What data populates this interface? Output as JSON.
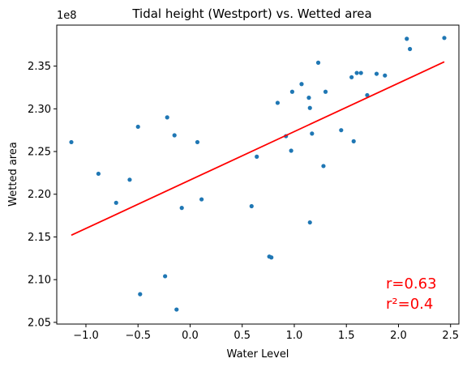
{
  "chart_data": {
    "type": "scatter",
    "title": "Tidal height (Westport) vs. Wetted area",
    "xlabel": "Water Level",
    "ylabel": "Wetted area",
    "y_offset_label": "1e8",
    "y_scale": 100000000,
    "xlim": [
      -1.28,
      2.58
    ],
    "ylim": [
      2.048,
      2.398
    ],
    "x_ticks": [
      -1.0,
      -0.5,
      0.0,
      0.5,
      1.0,
      1.5,
      2.0,
      2.5
    ],
    "x_tick_labels": [
      "−1.0",
      "−0.5",
      "0.0",
      "0.5",
      "1.0",
      "1.5",
      "2.0",
      "2.5"
    ],
    "y_ticks": [
      2.05,
      2.1,
      2.15,
      2.2,
      2.25,
      2.3,
      2.35
    ],
    "y_tick_labels": [
      "2.05",
      "2.10",
      "2.15",
      "2.20",
      "2.25",
      "2.30",
      "2.35"
    ],
    "point_color": "#1f77b4",
    "fit_color": "#ff0000",
    "points": [
      [
        -1.14,
        2.261
      ],
      [
        -0.88,
        2.224
      ],
      [
        -0.71,
        2.19
      ],
      [
        -0.58,
        2.217
      ],
      [
        -0.5,
        2.279
      ],
      [
        -0.48,
        2.083
      ],
      [
        -0.24,
        2.104
      ],
      [
        -0.22,
        2.29
      ],
      [
        -0.15,
        2.269
      ],
      [
        -0.13,
        2.065
      ],
      [
        -0.08,
        2.184
      ],
      [
        0.07,
        2.261
      ],
      [
        0.11,
        2.194
      ],
      [
        0.59,
        2.186
      ],
      [
        0.64,
        2.244
      ],
      [
        0.76,
        2.127
      ],
      [
        0.78,
        2.126
      ],
      [
        0.84,
        2.307
      ],
      [
        0.92,
        2.268
      ],
      [
        0.97,
        2.251
      ],
      [
        0.98,
        2.32
      ],
      [
        1.07,
        2.329
      ],
      [
        1.14,
        2.313
      ],
      [
        1.15,
        2.301
      ],
      [
        1.15,
        2.167
      ],
      [
        1.17,
        2.271
      ],
      [
        1.23,
        2.354
      ],
      [
        1.28,
        2.233
      ],
      [
        1.3,
        2.32
      ],
      [
        1.45,
        2.275
      ],
      [
        1.55,
        2.337
      ],
      [
        1.57,
        2.262
      ],
      [
        1.6,
        2.342
      ],
      [
        1.64,
        2.342
      ],
      [
        1.7,
        2.316
      ],
      [
        1.79,
        2.341
      ],
      [
        1.87,
        2.339
      ],
      [
        2.08,
        2.382
      ],
      [
        2.11,
        2.37
      ],
      [
        2.44,
        2.383
      ]
    ],
    "fit_line": {
      "x": [
        -1.14,
        2.44
      ],
      "y": [
        2.152,
        2.355
      ]
    },
    "annotations": {
      "r": "r=0.63",
      "r2": "r²=0.4"
    },
    "grid": false,
    "legend": "none"
  }
}
